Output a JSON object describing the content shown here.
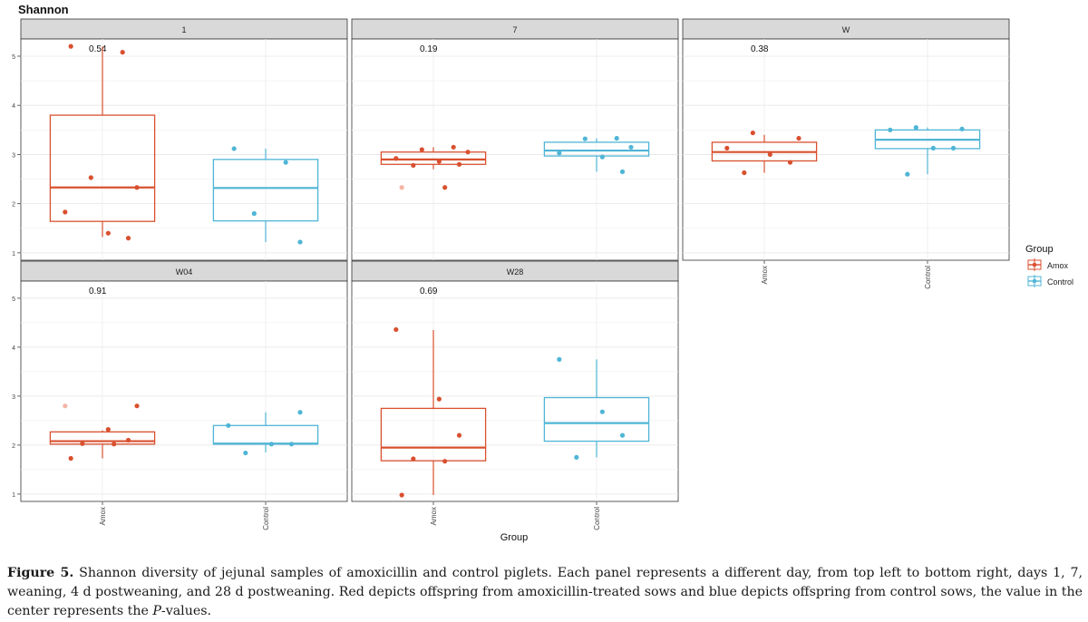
{
  "chart_data": {
    "type": "box",
    "title": "Shannon",
    "xlabel": "Group",
    "ylabel": "",
    "ylim": [
      0.85,
      5.35
    ],
    "yticks": [
      "1",
      "2",
      "3",
      "4",
      "5"
    ],
    "categories": [
      "Amox",
      "Control"
    ],
    "grid": true,
    "legend": {
      "title": "Group",
      "position": "right",
      "entries": [
        {
          "name": "Amox",
          "color": "#d9502f"
        },
        {
          "name": "Control",
          "color": "#4fb5d6"
        }
      ]
    },
    "panels": [
      {
        "label": "1",
        "pvalue": "0.54",
        "boxes": [
          {
            "group": "Amox",
            "whisker_low": 1.32,
            "q1": 1.64,
            "median": 2.33,
            "q3": 3.8,
            "whisker_high": 5.2,
            "points": [
              5.2,
              5.08,
              2.53,
              2.33,
              1.83,
              1.4,
              1.3
            ]
          },
          {
            "group": "Control",
            "whisker_low": 1.22,
            "q1": 1.65,
            "median": 2.32,
            "q3": 2.9,
            "whisker_high": 3.12,
            "points": [
              3.12,
              2.84,
              1.8,
              1.22
            ]
          }
        ]
      },
      {
        "label": "7",
        "pvalue": "0.19",
        "boxes": [
          {
            "group": "Amox",
            "whisker_low": 2.7,
            "q1": 2.8,
            "median": 2.9,
            "q3": 3.05,
            "whisker_high": 3.15,
            "points": [
              3.15,
              3.1,
              3.05,
              2.92,
              2.86,
              2.8,
              2.78,
              2.33,
              2.33
            ]
          },
          {
            "group": "Control",
            "whisker_low": 2.65,
            "q1": 2.97,
            "median": 3.08,
            "q3": 3.25,
            "whisker_high": 3.33,
            "points": [
              3.33,
              3.32,
              3.15,
              3.03,
              2.95,
              2.65
            ]
          }
        ]
      },
      {
        "label": "W",
        "pvalue": "0.38",
        "boxes": [
          {
            "group": "Amox",
            "whisker_low": 2.63,
            "q1": 2.87,
            "median": 3.05,
            "q3": 3.25,
            "whisker_high": 3.4,
            "points": [
              3.44,
              3.33,
              3.13,
              3.0,
              2.84,
              2.63
            ]
          },
          {
            "group": "Control",
            "whisker_low": 2.6,
            "q1": 3.12,
            "median": 3.3,
            "q3": 3.5,
            "whisker_high": 3.55,
            "points": [
              3.55,
              3.52,
              3.5,
              3.13,
              3.13,
              2.6
            ]
          }
        ]
      },
      {
        "label": "W04",
        "pvalue": "0.91",
        "boxes": [
          {
            "group": "Amox",
            "whisker_low": 1.73,
            "q1": 2.02,
            "median": 2.08,
            "q3": 2.27,
            "whisker_high": 2.3,
            "points": [
              2.8,
              2.8,
              2.32,
              2.1,
              2.03,
              2.02,
              1.73
            ]
          },
          {
            "group": "Control",
            "whisker_low": 1.85,
            "q1": 2.02,
            "median": 2.03,
            "q3": 2.4,
            "whisker_high": 2.67,
            "points": [
              2.67,
              2.4,
              2.02,
              2.02,
              1.84
            ]
          }
        ]
      },
      {
        "label": "W28",
        "pvalue": "0.69",
        "boxes": [
          {
            "group": "Amox",
            "whisker_low": 0.98,
            "q1": 1.68,
            "median": 1.95,
            "q3": 2.75,
            "whisker_high": 4.35,
            "points": [
              4.36,
              2.94,
              2.2,
              1.72,
              1.67,
              0.98
            ]
          },
          {
            "group": "Control",
            "whisker_low": 1.75,
            "q1": 2.08,
            "median": 2.45,
            "q3": 2.97,
            "whisker_high": 3.75,
            "points": [
              3.75,
              2.68,
              2.2,
              1.75
            ]
          }
        ]
      }
    ]
  },
  "caption": {
    "figure_label": "Figure 5.",
    "text": " Shannon diversity of jejunal samples of amoxicillin and control piglets. Each panel represents a different day, from top left to bottom right, days 1, 7, weaning, 4 d postweaning, and 28 d postweaning. Red depicts offspring from amoxicillin-treated sows and blue depicts offspring from control sows, the value in the center represents the ",
    "p_italic": "P",
    "suffix": "-values."
  }
}
